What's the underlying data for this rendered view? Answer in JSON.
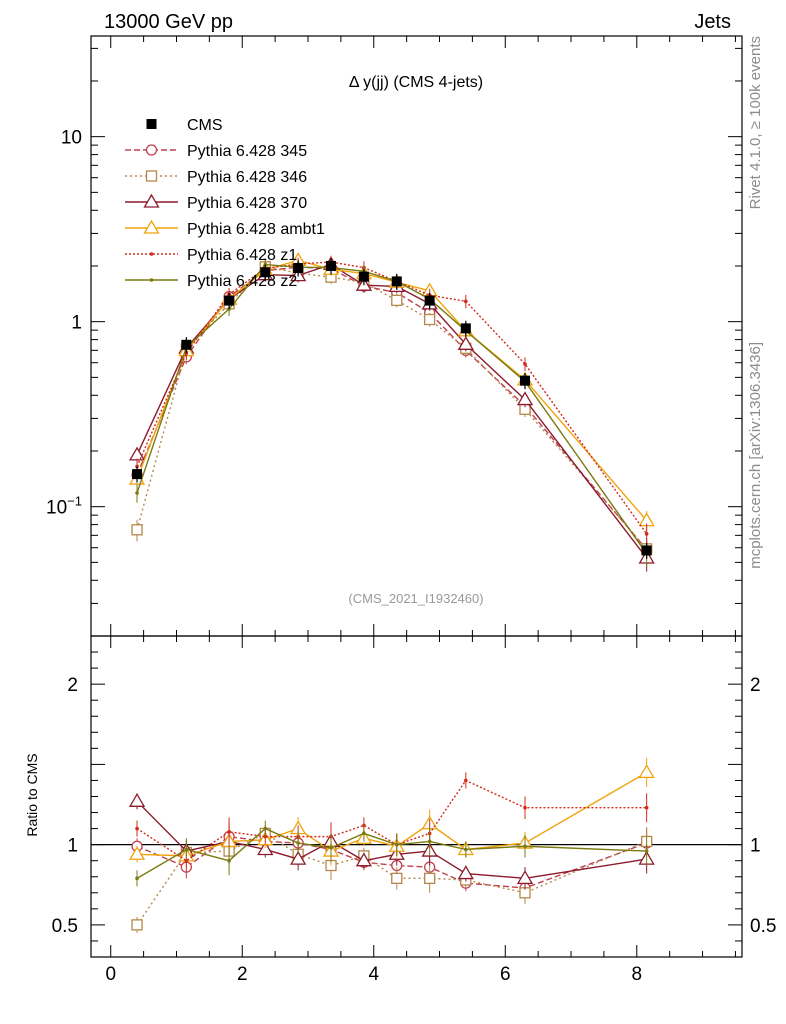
{
  "header": {
    "left": "13000 GeV pp",
    "right": "Jets"
  },
  "side_labels": {
    "rivet": "Rivet 4.1.0, ≥ 100k events",
    "mcplots": "mcplots.cern.ch [arXiv:1306.3436]"
  },
  "chart_data": {
    "type": "line",
    "title": "Δ y(jj) (CMS 4-jets)",
    "analysis_id": "(CMS_2021_I1932460)",
    "xlabel": "",
    "ylabel_ratio": "Ratio to CMS",
    "xlim": [
      -0.3,
      9.6
    ],
    "ylim_log": [
      0.02,
      35
    ],
    "ylim_ratio": [
      0.3,
      2.3
    ],
    "y_ticks": [
      "10",
      "1",
      "10^-1"
    ],
    "x_ticks": [
      "0",
      "2",
      "4",
      "6",
      "8"
    ],
    "ratio_ticks": [
      "2",
      "1",
      "0.5"
    ],
    "x": [
      0.4,
      1.15,
      1.8,
      2.35,
      2.85,
      3.35,
      3.85,
      4.35,
      4.85,
      5.4,
      6.3,
      8.15
    ],
    "data": {
      "name": "CMS",
      "values": [
        0.15,
        0.75,
        1.3,
        1.85,
        1.95,
        2.0,
        1.75,
        1.65,
        1.3,
        0.92,
        0.48,
        0.058
      ]
    },
    "series": [
      {
        "name": "Pythia 6.428 345",
        "color": "#c0404e",
        "dash": "6,3",
        "marker": "circle",
        "ratio": [
          0.99,
          0.86,
          1.05,
          1.02,
          1.01,
          0.97,
          0.89,
          0.87,
          0.86,
          0.76,
          0.73,
          1.01
        ]
      },
      {
        "name": "Pythia 6.428 346",
        "color": "#b5874a",
        "dash": "2,3",
        "marker": "square",
        "ratio": [
          0.5,
          0.95,
          0.96,
          1.07,
          0.94,
          0.87,
          0.93,
          0.79,
          0.79,
          0.78,
          0.7,
          1.02
        ]
      },
      {
        "name": "Pythia 6.428 370",
        "color": "#8b1a2c",
        "dash": "",
        "marker": "triangle",
        "ratio": [
          1.27,
          0.96,
          1.02,
          0.97,
          0.91,
          1.02,
          0.9,
          0.94,
          0.96,
          0.82,
          0.79,
          0.91
        ]
      },
      {
        "name": "Pythia 6.428 ambt1",
        "color": "#f0a30a",
        "dash": "",
        "marker": "triangle",
        "ratio": [
          0.94,
          0.93,
          1.02,
          1.03,
          1.1,
          0.96,
          1.04,
          0.99,
          1.13,
          0.97,
          1.01,
          1.45
        ]
      },
      {
        "name": "Pythia 6.428 z1",
        "color": "#d42a1c",
        "dash": "2,2",
        "marker": "dot",
        "ratio": [
          1.1,
          0.9,
          1.08,
          1.05,
          1.05,
          1.05,
          1.12,
          1.0,
          1.07,
          1.4,
          1.23,
          1.23
        ]
      },
      {
        "name": "Pythia 6.428 z2",
        "color": "#7a7a10",
        "dash": "",
        "marker": "dot",
        "ratio": [
          0.79,
          0.97,
          0.9,
          1.1,
          1.01,
          0.98,
          1.07,
          1.0,
          1.02,
          0.97,
          0.99,
          0.96
        ]
      }
    ]
  }
}
